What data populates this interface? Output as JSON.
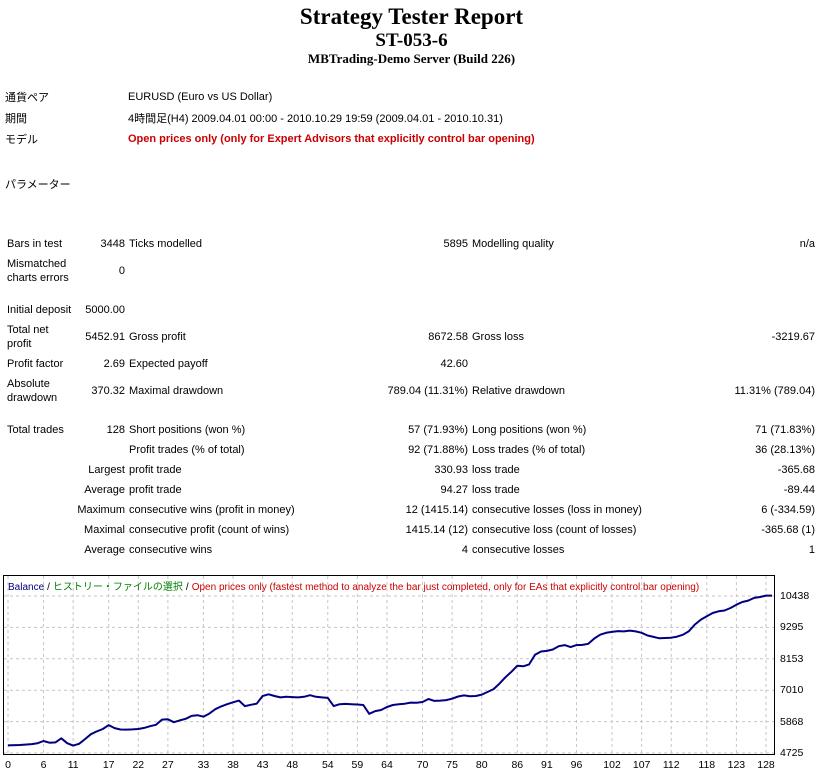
{
  "header": {
    "title": "Strategy Tester Report",
    "expert": "ST-053-6",
    "server": "MBTrading-Demo Server (Build 226)"
  },
  "info": {
    "symbol_label": "通貨ペア",
    "symbol_value": "EURUSD (Euro vs US Dollar)",
    "period_label": "期間",
    "period_value": "4時間足(H4) 2009.04.01 00:00 - 2010.10.29 19:59 (2009.04.01 - 2010.10.31)",
    "model_label": "モデル",
    "model_value": "Open prices only (only for Expert Advisors that explicitly control bar opening)",
    "parameters_label": "パラメーター"
  },
  "stats_rows": [
    [
      "Bars in test",
      "3448",
      "Ticks modelled",
      "5895",
      "Modelling quality",
      "n/a"
    ],
    [
      "Mismatched charts errors",
      "0",
      "",
      "",
      "",
      ""
    ],
    [],
    [
      "Initial deposit",
      "5000.00",
      "",
      "",
      "",
      ""
    ],
    [
      "Total net profit",
      "5452.91",
      "Gross profit",
      "8672.58",
      "Gross loss",
      "-3219.67"
    ],
    [
      "Profit factor",
      "2.69",
      "Expected payoff",
      "42.60",
      "",
      ""
    ],
    [
      "Absolute drawdown",
      "370.32",
      "Maximal drawdown",
      "789.04 (11.31%)",
      "Relative drawdown",
      "11.31% (789.04)"
    ],
    [],
    [
      "Total trades",
      "128",
      "Short positions (won %)",
      "57 (71.93%)",
      "Long positions (won %)",
      "71 (71.83%)"
    ],
    [
      "",
      "",
      "Profit trades (% of total)",
      "92 (71.88%)",
      "Loss trades (% of total)",
      "36 (28.13%)"
    ],
    [
      "",
      "Largest",
      "profit trade",
      "330.93",
      "loss trade",
      "-365.68"
    ],
    [
      "",
      "Average",
      "profit trade",
      "94.27",
      "loss trade",
      "-89.44"
    ],
    [
      "",
      "Maximum",
      "consecutive wins (profit in money)",
      "12 (1415.14)",
      "consecutive losses (loss in money)",
      "6 (-334.59)"
    ],
    [
      "",
      "Maximal",
      "consecutive profit (count of wins)",
      "1415.14 (12)",
      "consecutive loss (count of losses)",
      "-365.68 (1)"
    ],
    [
      "",
      "Average",
      "consecutive wins",
      "4",
      "consecutive losses",
      "1"
    ]
  ],
  "chart_data": {
    "type": "line",
    "legend": {
      "balance": "Balance",
      "history": "ヒストリー・ファイルの選択",
      "model": "Open prices only (fastest method to analyze the bar just completed, only for EAs that explicitly control bar opening)",
      "separator": "/"
    },
    "colors": {
      "balance_line": "#000080",
      "legend_history": "#008000",
      "legend_model": "#cc0000",
      "grid": "#c6c6c6"
    },
    "xlabel": "",
    "ylabel": "",
    "x_ticks": [
      0,
      6,
      11,
      17,
      22,
      27,
      33,
      38,
      43,
      48,
      54,
      59,
      64,
      70,
      75,
      80,
      86,
      91,
      96,
      102,
      107,
      112,
      118,
      123,
      128
    ],
    "y_ticks": [
      10438,
      9295,
      8153,
      7010,
      5868,
      4725
    ],
    "xlim": [
      0,
      128
    ],
    "ylim": [
      4725,
      11160
    ],
    "grid": "dashed",
    "legend_position": "top-left-inside",
    "series": [
      {
        "name": "Balance",
        "color": "#000080",
        "points": [
          [
            0,
            5000
          ],
          [
            2,
            5015
          ],
          [
            4,
            5050
          ],
          [
            5,
            5080
          ],
          [
            6,
            5160
          ],
          [
            7,
            5100
          ],
          [
            8,
            5110
          ],
          [
            9,
            5260
          ],
          [
            10,
            5080
          ],
          [
            11,
            4995
          ],
          [
            12,
            5060
          ],
          [
            13,
            5230
          ],
          [
            14,
            5410
          ],
          [
            15,
            5510
          ],
          [
            16,
            5600
          ],
          [
            17,
            5740
          ],
          [
            18,
            5630
          ],
          [
            19,
            5580
          ],
          [
            20,
            5575
          ],
          [
            21,
            5585
          ],
          [
            22,
            5600
          ],
          [
            23,
            5640
          ],
          [
            24,
            5700
          ],
          [
            25,
            5750
          ],
          [
            26,
            5940
          ],
          [
            27,
            5950
          ],
          [
            28,
            5845
          ],
          [
            29,
            5910
          ],
          [
            30,
            5970
          ],
          [
            31,
            6075
          ],
          [
            32,
            6100
          ],
          [
            33,
            6045
          ],
          [
            34,
            6160
          ],
          [
            35,
            6320
          ],
          [
            36,
            6420
          ],
          [
            37,
            6500
          ],
          [
            38,
            6570
          ],
          [
            39,
            6630
          ],
          [
            40,
            6430
          ],
          [
            41,
            6480
          ],
          [
            42,
            6520
          ],
          [
            43,
            6800
          ],
          [
            44,
            6860
          ],
          [
            45,
            6800
          ],
          [
            46,
            6750
          ],
          [
            47,
            6770
          ],
          [
            48,
            6760
          ],
          [
            49,
            6750
          ],
          [
            50,
            6770
          ],
          [
            51,
            6830
          ],
          [
            52,
            6770
          ],
          [
            53,
            6750
          ],
          [
            54,
            6730
          ],
          [
            55,
            6430
          ],
          [
            56,
            6500
          ],
          [
            57,
            6510
          ],
          [
            58,
            6500
          ],
          [
            59,
            6490
          ],
          [
            60,
            6470
          ],
          [
            61,
            6150
          ],
          [
            62,
            6250
          ],
          [
            63,
            6290
          ],
          [
            64,
            6400
          ],
          [
            65,
            6470
          ],
          [
            66,
            6500
          ],
          [
            67,
            6520
          ],
          [
            68,
            6560
          ],
          [
            69,
            6550
          ],
          [
            70,
            6580
          ],
          [
            71,
            6690
          ],
          [
            72,
            6620
          ],
          [
            73,
            6630
          ],
          [
            74,
            6650
          ],
          [
            75,
            6700
          ],
          [
            76,
            6780
          ],
          [
            77,
            6820
          ],
          [
            78,
            6790
          ],
          [
            79,
            6800
          ],
          [
            80,
            6850
          ],
          [
            81,
            6950
          ],
          [
            82,
            7050
          ],
          [
            83,
            7250
          ],
          [
            84,
            7480
          ],
          [
            85,
            7680
          ],
          [
            86,
            7900
          ],
          [
            87,
            7880
          ],
          [
            88,
            7950
          ],
          [
            89,
            8300
          ],
          [
            90,
            8420
          ],
          [
            91,
            8440
          ],
          [
            92,
            8490
          ],
          [
            93,
            8610
          ],
          [
            94,
            8650
          ],
          [
            95,
            8580
          ],
          [
            96,
            8650
          ],
          [
            97,
            8660
          ],
          [
            98,
            8700
          ],
          [
            99,
            8890
          ],
          [
            100,
            9030
          ],
          [
            101,
            9100
          ],
          [
            102,
            9130
          ],
          [
            103,
            9160
          ],
          [
            104,
            9150
          ],
          [
            105,
            9180
          ],
          [
            106,
            9150
          ],
          [
            107,
            9100
          ],
          [
            108,
            9000
          ],
          [
            109,
            8950
          ],
          [
            110,
            8900
          ],
          [
            111,
            8910
          ],
          [
            112,
            8920
          ],
          [
            113,
            8960
          ],
          [
            114,
            9030
          ],
          [
            115,
            9160
          ],
          [
            116,
            9400
          ],
          [
            117,
            9580
          ],
          [
            118,
            9700
          ],
          [
            119,
            9820
          ],
          [
            120,
            9880
          ],
          [
            121,
            9910
          ],
          [
            122,
            10000
          ],
          [
            123,
            10120
          ],
          [
            124,
            10220
          ],
          [
            125,
            10270
          ],
          [
            126,
            10370
          ],
          [
            127,
            10400
          ],
          [
            128,
            10452.91
          ]
        ]
      }
    ]
  }
}
